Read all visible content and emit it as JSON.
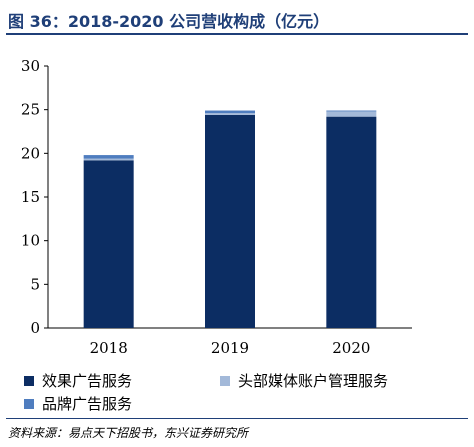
{
  "title": "图 36：2018-2020 公司营收构成（亿元）",
  "source": "资料来源：易点天下招股书，东兴证券研究所",
  "chart_data": {
    "type": "bar",
    "stacked": true,
    "categories": [
      "2018",
      "2019",
      "2020"
    ],
    "series": [
      {
        "name": "效果广告服务",
        "color": "#0c2d63",
        "values": [
          19.2,
          24.4,
          24.2
        ]
      },
      {
        "name": "头部媒体账户管理服务",
        "color": "#a3b9d9",
        "values": [
          0.2,
          0.2,
          0.6
        ]
      },
      {
        "name": "品牌广告服务",
        "color": "#4f7dbf",
        "values": [
          0.4,
          0.3,
          0.1
        ]
      }
    ],
    "ylim": [
      0,
      30
    ],
    "yticks": [
      0,
      5,
      10,
      15,
      20,
      25,
      30
    ],
    "grid": false,
    "legend_position": "bottom"
  }
}
